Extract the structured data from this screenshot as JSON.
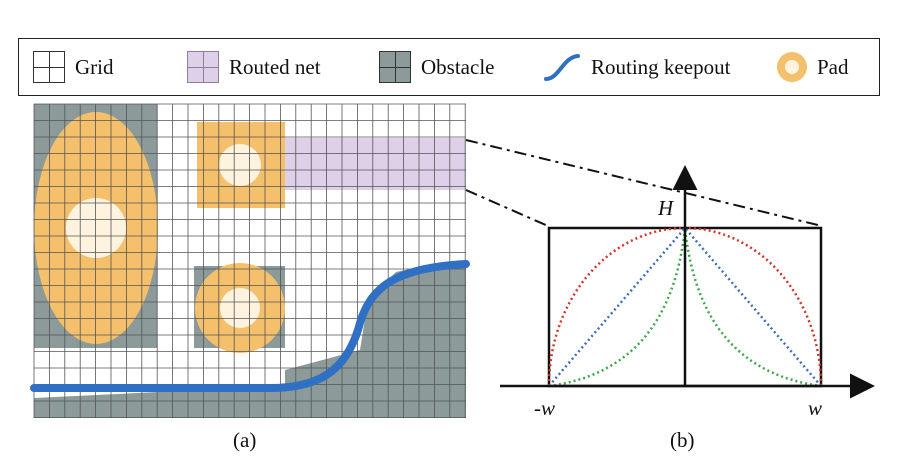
{
  "legend": {
    "grid": "Grid",
    "routed_net": "Routed net",
    "obstacle": "Obstacle",
    "routing_keepout": "Routing keepout",
    "pad": "Pad"
  },
  "panel_a": {
    "caption": "(a)"
  },
  "panel_b": {
    "caption": "(b)",
    "y_label": "H",
    "x_left_label": "-w",
    "x_right_label": "w"
  },
  "colors": {
    "grid_line": "#555555",
    "obstacle": "#8c9a9a",
    "routed_net": "#ddd0e8",
    "pad": "#f4c06b",
    "pad_core": "#fdf3df",
    "keepout": "#2f6fc4",
    "curve_red": "#d6342c",
    "curve_blue": "#3f6fb8",
    "curve_green": "#3ca84a"
  }
}
